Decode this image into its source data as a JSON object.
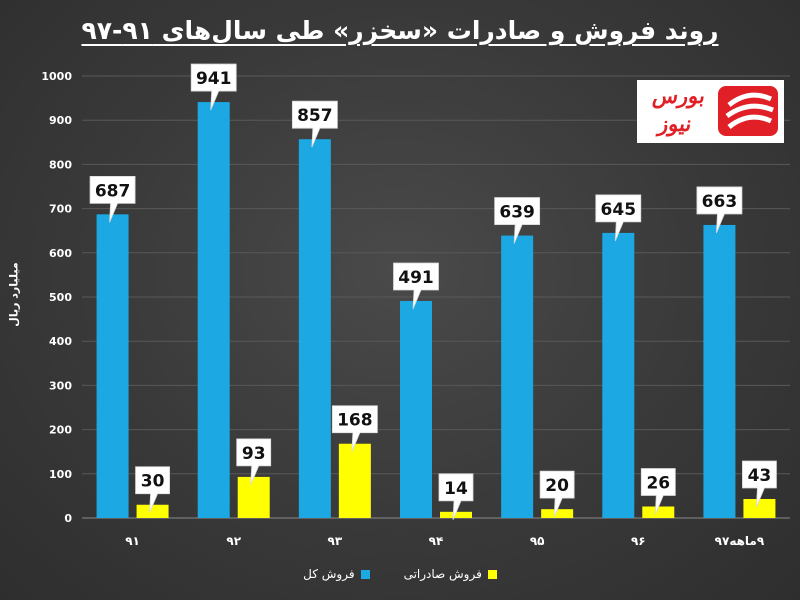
{
  "title": "روند فروش و صادرات «سخزر» طی سال‌های ۹۱-۹۷",
  "logo": {
    "text": "بورس نیوز"
  },
  "chart_data": {
    "type": "bar",
    "title": "روند فروش و صادرات «سخزر» طی سال‌های ۹۱-۹۷",
    "ylabel": "میلیارد ریال",
    "xlabel": "",
    "categories": [
      "۹۱",
      "۹۲",
      "۹۳",
      "۹۴",
      "۹۵",
      "۹۶",
      "۹ماهه۹۷"
    ],
    "ylim": [
      0,
      1000
    ],
    "yticks": [
      "0",
      "100",
      "200",
      "300",
      "400",
      "500",
      "600",
      "700",
      "800",
      "900",
      "1000"
    ],
    "grid": true,
    "legend_position": "bottom",
    "series": [
      {
        "name": "فروش کل",
        "color": "#1ba8e3",
        "values": [
          687,
          941,
          857,
          491,
          639,
          645,
          663
        ]
      },
      {
        "name": "فروش صادراتی",
        "color": "#ffff00",
        "values": [
          30,
          93,
          168,
          14,
          20,
          26,
          43
        ]
      }
    ]
  }
}
